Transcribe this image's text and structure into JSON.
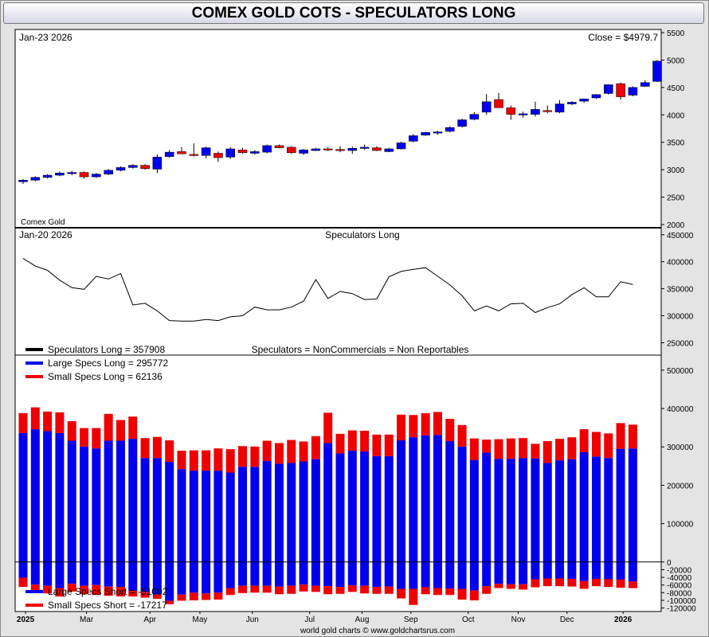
{
  "title": "COMEX GOLD COTS - SPECULATORS LONG",
  "colors": {
    "up": "#0000ee",
    "down": "#ee0000",
    "line": "#000000",
    "large": "#0000ee",
    "small": "#ee0000"
  },
  "footer": "world gold charts © www.goldchartsrus.com",
  "chart_data": [
    {
      "type": "candlestick",
      "name": "price",
      "date_label": "Jan-23  2026",
      "close_label": "Close = $4979.7",
      "series_label": "Comex Gold",
      "ylim": [
        2000,
        5500
      ],
      "yticks": [
        2000,
        2500,
        3000,
        3500,
        4000,
        4500,
        5000,
        5500
      ],
      "ohlc": [
        [
          2780,
          2830,
          2740,
          2810
        ],
        [
          2810,
          2880,
          2790,
          2860
        ],
        [
          2860,
          2920,
          2840,
          2900
        ],
        [
          2900,
          2970,
          2880,
          2940
        ],
        [
          2940,
          2980,
          2900,
          2950
        ],
        [
          2950,
          2970,
          2840,
          2870
        ],
        [
          2870,
          2940,
          2850,
          2920
        ],
        [
          2920,
          3010,
          2900,
          2990
        ],
        [
          2990,
          3060,
          2970,
          3040
        ],
        [
          3040,
          3100,
          3020,
          3080
        ],
        [
          3080,
          3100,
          3000,
          3020
        ],
        [
          3010,
          3280,
          2940,
          3230
        ],
        [
          3240,
          3360,
          3220,
          3320
        ],
        [
          3330,
          3410,
          3290,
          3290
        ],
        [
          3280,
          3480,
          3240,
          3260
        ],
        [
          3260,
          3420,
          3210,
          3400
        ],
        [
          3300,
          3330,
          3140,
          3220
        ],
        [
          3230,
          3410,
          3200,
          3380
        ],
        [
          3360,
          3400,
          3290,
          3310
        ],
        [
          3300,
          3360,
          3280,
          3330
        ],
        [
          3320,
          3460,
          3300,
          3440
        ],
        [
          3440,
          3460,
          3390,
          3400
        ],
        [
          3410,
          3430,
          3290,
          3310
        ],
        [
          3300,
          3380,
          3270,
          3360
        ],
        [
          3350,
          3400,
          3340,
          3380
        ],
        [
          3380,
          3410,
          3340,
          3360
        ],
        [
          3370,
          3430,
          3320,
          3350
        ],
        [
          3350,
          3420,
          3290,
          3390
        ],
        [
          3390,
          3460,
          3360,
          3410
        ],
        [
          3400,
          3430,
          3340,
          3350
        ],
        [
          3330,
          3400,
          3320,
          3380
        ],
        [
          3380,
          3510,
          3370,
          3490
        ],
        [
          3520,
          3650,
          3500,
          3620
        ],
        [
          3630,
          3690,
          3620,
          3680
        ],
        [
          3670,
          3710,
          3640,
          3690
        ],
        [
          3700,
          3790,
          3680,
          3770
        ],
        [
          3790,
          3930,
          3770,
          3910
        ],
        [
          3920,
          4050,
          3900,
          4010
        ],
        [
          4050,
          4380,
          4000,
          4240
        ],
        [
          4280,
          4400,
          4140,
          4130
        ],
        [
          4130,
          4170,
          3910,
          4010
        ],
        [
          4000,
          4060,
          3950,
          4020
        ],
        [
          4010,
          4240,
          3970,
          4100
        ],
        [
          4080,
          4170,
          4030,
          4070
        ],
        [
          4050,
          4270,
          4030,
          4200
        ],
        [
          4200,
          4250,
          4180,
          4230
        ],
        [
          4250,
          4300,
          4220,
          4290
        ],
        [
          4310,
          4380,
          4290,
          4370
        ],
        [
          4390,
          4560,
          4370,
          4550
        ],
        [
          4570,
          4590,
          4280,
          4330
        ],
        [
          4360,
          4520,
          4340,
          4500
        ],
        [
          4520,
          4630,
          4510,
          4590
        ],
        [
          4610,
          5000,
          4600,
          4980
        ]
      ]
    },
    {
      "type": "line",
      "name": "speculators-long",
      "date_label": "Jan-20  2026",
      "title": "Speculators Long",
      "ylim": [
        230000,
        460000
      ],
      "yticks": [
        250000,
        300000,
        350000,
        400000,
        450000
      ],
      "legend_label": "Speculators Long   = 357908",
      "note": "Speculators = NonCommercials = Non Reportables",
      "values": [
        406000,
        392000,
        384000,
        366000,
        352000,
        349000,
        373000,
        368000,
        378000,
        320000,
        323000,
        309000,
        291000,
        290000,
        290000,
        293000,
        291000,
        298000,
        300000,
        316000,
        311000,
        311000,
        316000,
        327000,
        367000,
        332000,
        345000,
        341000,
        330000,
        331000,
        372000,
        382000,
        386000,
        389000,
        373000,
        357000,
        337000,
        309000,
        318000,
        309000,
        322000,
        323000,
        306000,
        315000,
        322000,
        339000,
        352000,
        335000,
        335000,
        363000,
        357908
      ]
    },
    {
      "type": "stacked-bar",
      "name": "specs-long-short",
      "ylim": [
        -125000,
        535000
      ],
      "yticks": [
        -120000,
        -100000,
        -80000,
        -60000,
        -40000,
        -20000,
        0,
        100000,
        200000,
        300000,
        400000,
        500000
      ],
      "ytick_labels": [
        "-120000",
        "-100000",
        "-80000",
        "-60000",
        "-40000",
        "-20000",
        "0",
        "100000",
        "200000",
        "300000",
        "400000",
        "500000"
      ],
      "legend_top": [
        "Large Specs Long  = 295772",
        "Small Specs Long  = 62136"
      ],
      "legend_bottom": [
        "Large Specs Short = -51002",
        "Small Specs Short = -17217"
      ],
      "large_long": [
        336000,
        346000,
        341000,
        336000,
        316000,
        301000,
        296000,
        316000,
        316000,
        321000,
        271000,
        271000,
        261000,
        242000,
        238000,
        238000,
        238000,
        233000,
        248000,
        248000,
        263000,
        256000,
        258000,
        262000,
        268000,
        310000,
        283000,
        290000,
        288000,
        276000,
        276000,
        317000,
        325000,
        330000,
        331000,
        315000,
        301000,
        266000,
        285000,
        269000,
        269000,
        271000,
        270000,
        258000,
        265000,
        268000,
        286000,
        275000,
        271000,
        295000,
        295772
      ],
      "small_long": [
        52000,
        57000,
        51000,
        54000,
        51000,
        48000,
        53000,
        70000,
        54000,
        58000,
        52000,
        55000,
        56000,
        48000,
        53000,
        53000,
        58000,
        61000,
        54000,
        53000,
        53000,
        54000,
        60000,
        52000,
        60000,
        79000,
        51000,
        53000,
        54000,
        56000,
        56000,
        67000,
        58000,
        58000,
        60000,
        58000,
        56000,
        56000,
        34000,
        51000,
        53000,
        52000,
        38000,
        57000,
        56000,
        57000,
        60000,
        64000,
        64000,
        67000,
        62136
      ],
      "large_short": [
        -41000,
        -59000,
        -62000,
        -68000,
        -57000,
        -62000,
        -60000,
        -64000,
        -65000,
        -75000,
        -78000,
        -85000,
        -101000,
        -85000,
        -80000,
        -82000,
        -80000,
        -68000,
        -62000,
        -62000,
        -62000,
        -64000,
        -62000,
        -59000,
        -62000,
        -63000,
        -65000,
        -61000,
        -62000,
        -65000,
        -64000,
        -70000,
        -70000,
        -66000,
        -68000,
        -69000,
        -70000,
        -74000,
        -63000,
        -57000,
        -58000,
        -58000,
        -45000,
        -43000,
        -43000,
        -44000,
        -50000,
        -44000,
        -45000,
        -46000,
        -51002
      ],
      "small_short": [
        -24000,
        -19000,
        -20000,
        -22000,
        -20000,
        -22000,
        -26000,
        -24000,
        -25000,
        -15000,
        -15000,
        -11000,
        -9000,
        -16000,
        -20000,
        -17000,
        -18000,
        -18000,
        -19000,
        -18000,
        -18000,
        -20000,
        -21000,
        -18000,
        -16000,
        -21000,
        -18000,
        -17000,
        -20000,
        -18000,
        -19000,
        -25000,
        -42000,
        -18000,
        -18000,
        -17000,
        -28000,
        -26000,
        -20000,
        -11000,
        -12000,
        -14000,
        -21000,
        -20000,
        -20000,
        -20000,
        -20000,
        -19000,
        -20000,
        -21000,
        -17217
      ]
    }
  ],
  "x_axis": {
    "months": [
      {
        "label": "2025",
        "index": 0.2,
        "bold": true
      },
      {
        "label": "Mar",
        "index": 5.2,
        "bold": false
      },
      {
        "label": "Apr",
        "index": 10.4,
        "bold": false
      },
      {
        "label": "May",
        "index": 14.5,
        "bold": false
      },
      {
        "label": "Jun",
        "index": 18.8,
        "bold": false
      },
      {
        "label": "Jul",
        "index": 23.5,
        "bold": false
      },
      {
        "label": "Aug",
        "index": 27.8,
        "bold": false
      },
      {
        "label": "Sep",
        "index": 31.8,
        "bold": false
      },
      {
        "label": "Oct",
        "index": 36.5,
        "bold": false
      },
      {
        "label": "Nov",
        "index": 40.6,
        "bold": false
      },
      {
        "label": "Dec",
        "index": 44.6,
        "bold": false
      },
      {
        "label": "2026",
        "index": 49.2,
        "bold": true
      }
    ]
  }
}
